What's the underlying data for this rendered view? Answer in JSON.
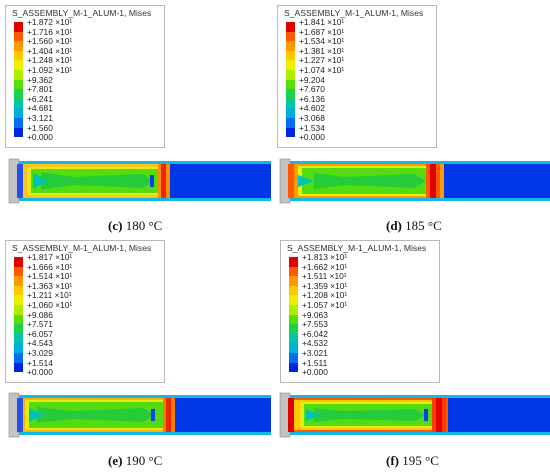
{
  "colors": {
    "contour": [
      "#e00000",
      "#ff5a00",
      "#ff9900",
      "#ffc800",
      "#e9f000",
      "#b0ee00",
      "#58e000",
      "#1ed14a",
      "#00c8a6",
      "#00aee0",
      "#0070f0",
      "#0024e0"
    ],
    "fixture": "#c0c0c0"
  },
  "panels": [
    {
      "id": "c",
      "legend_title": "S_ASSEMBLY_M-1_ALUM-1, Mises",
      "values": [
        "+1.872 ×10¹",
        "+1.716 ×10¹",
        "+1.560 ×10¹",
        "+1.404 ×10¹",
        "+1.248 ×10¹",
        "+1.092 ×10¹",
        "+9.362",
        "+7.801",
        "+6.241",
        "+4.681",
        "+3.121",
        "+1.560",
        "+0.000"
      ],
      "caption_letter": "(c)",
      "caption_temp": "180 °C"
    },
    {
      "id": "d",
      "legend_title": "S_ASSEMBLY_M-1_ALUM-1, Mises",
      "values": [
        "+1.841 ×10¹",
        "+1.687 ×10¹",
        "+1.534 ×10¹",
        "+1.381 ×10¹",
        "+1.227 ×10¹",
        "+1.074 ×10¹",
        "+9.204",
        "+7.670",
        "+6.136",
        "+4.602",
        "+3.068",
        "+1.534",
        "+0.000"
      ],
      "caption_letter": "(d)",
      "caption_temp": "185 °C"
    },
    {
      "id": "e",
      "legend_title": "S_ASSEMBLY_M-1_ALUM-1, Mises",
      "values": [
        "+1.817 ×10¹",
        "+1.666 ×10¹",
        "+1.514 ×10¹",
        "+1.363 ×10¹",
        "+1.211 ×10¹",
        "+1.060 ×10¹",
        "+9.086",
        "+7.571",
        "+6.057",
        "+4.543",
        "+3.029",
        "+1.514",
        "+0.000"
      ],
      "caption_letter": "(e)",
      "caption_temp": "190 °C"
    },
    {
      "id": "f",
      "legend_title": "S_ASSEMBLY_M-1_ALUM-1, Mises",
      "values": [
        "+1.813 ×10¹",
        "+1.662 ×10¹",
        "+1.511 ×10¹",
        "+1.359 ×10¹",
        "+1.208 ×10¹",
        "+1.057 ×10¹",
        "+9.063",
        "+7.553",
        "+6.042",
        "+4.532",
        "+3.021",
        "+1.511",
        "+0.000"
      ],
      "caption_letter": "(f)",
      "caption_temp": "195 °C"
    }
  ]
}
